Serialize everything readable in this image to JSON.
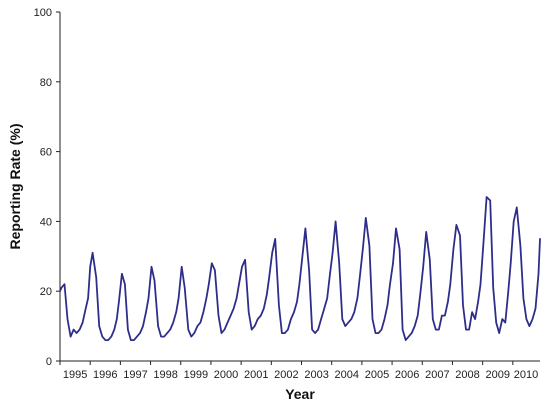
{
  "chart_data": {
    "type": "line",
    "title": "",
    "xlabel": "Year",
    "ylabel": "Reporting Rate (%)",
    "ylim": [
      0,
      100
    ],
    "xlim": [
      1995,
      2010.9
    ],
    "yticks": [
      0,
      20,
      40,
      60,
      80,
      100
    ],
    "xtick_labels": [
      "1995",
      "1996",
      "1997",
      "1998",
      "1999",
      "2000",
      "2001",
      "2002",
      "2003",
      "2004",
      "2005",
      "2006",
      "2007",
      "2008",
      "2009",
      "2010"
    ],
    "grid": false,
    "legend": "none",
    "colors": {
      "line": "#2e2e8a"
    },
    "series": [
      {
        "values_x": [
          1995.0,
          1995.05,
          1995.15,
          1995.25,
          1995.35,
          1995.45,
          1995.55,
          1995.65,
          1995.75,
          1995.85,
          1995.93,
          1996.0,
          1996.08,
          1996.2,
          1996.3,
          1996.4,
          1996.5,
          1996.6,
          1996.7,
          1996.8,
          1996.88,
          1996.95,
          1997.05,
          1997.15,
          1997.25,
          1997.35,
          1997.45,
          1997.55,
          1997.65,
          1997.75,
          1997.85,
          1997.93,
          1998.03,
          1998.13,
          1998.25,
          1998.35,
          1998.45,
          1998.55,
          1998.65,
          1998.75,
          1998.85,
          1998.93,
          1999.03,
          1999.13,
          1999.25,
          1999.35,
          1999.45,
          1999.55,
          1999.65,
          1999.75,
          1999.85,
          1999.93,
          2000.03,
          2000.13,
          2000.25,
          2000.35,
          2000.45,
          2000.55,
          2000.65,
          2000.75,
          2000.85,
          2000.93,
          2001.03,
          2001.13,
          2001.25,
          2001.35,
          2001.45,
          2001.55,
          2001.65,
          2001.75,
          2001.85,
          2001.93,
          2002.03,
          2002.13,
          2002.25,
          2002.35,
          2002.45,
          2002.55,
          2002.65,
          2002.75,
          2002.85,
          2002.93,
          2003.03,
          2003.13,
          2003.25,
          2003.35,
          2003.45,
          2003.55,
          2003.65,
          2003.75,
          2003.85,
          2003.93,
          2004.03,
          2004.13,
          2004.25,
          2004.35,
          2004.45,
          2004.55,
          2004.65,
          2004.75,
          2004.85,
          2004.93,
          2005.03,
          2005.13,
          2005.25,
          2005.35,
          2005.45,
          2005.55,
          2005.65,
          2005.75,
          2005.85,
          2005.93,
          2006.03,
          2006.13,
          2006.25,
          2006.35,
          2006.45,
          2006.55,
          2006.65,
          2006.75,
          2006.85,
          2006.93,
          2007.03,
          2007.13,
          2007.25,
          2007.35,
          2007.45,
          2007.55,
          2007.65,
          2007.75,
          2007.85,
          2007.93,
          2008.03,
          2008.13,
          2008.25,
          2008.35,
          2008.45,
          2008.55,
          2008.65,
          2008.75,
          2008.85,
          2008.93,
          2009.03,
          2009.13,
          2009.25,
          2009.35,
          2009.45,
          2009.55,
          2009.65,
          2009.75,
          2009.85,
          2009.93,
          2010.03,
          2010.13,
          2010.25,
          2010.35,
          2010.45,
          2010.55,
          2010.65,
          2010.75,
          2010.85,
          2010.9
        ],
        "values_y": [
          20,
          21,
          22,
          12,
          7,
          9,
          8,
          9,
          11,
          15,
          18,
          27,
          31,
          24,
          10,
          7,
          6,
          6,
          7,
          9,
          12,
          17,
          25,
          22,
          9,
          6,
          6,
          7,
          8,
          10,
          14,
          18,
          27,
          23,
          10,
          7,
          7,
          8,
          9,
          11,
          14,
          18,
          27,
          21,
          9,
          7,
          8,
          10,
          11,
          14,
          18,
          22,
          28,
          26,
          13,
          8,
          9,
          11,
          13,
          15,
          18,
          22,
          27,
          29,
          14,
          9,
          10,
          12,
          13,
          15,
          19,
          24,
          31,
          35,
          16,
          8,
          8,
          9,
          12,
          14,
          17,
          22,
          30,
          38,
          26,
          9,
          8,
          9,
          12,
          15,
          18,
          24,
          31,
          40,
          28,
          12,
          10,
          11,
          12,
          14,
          18,
          24,
          32,
          41,
          33,
          12,
          8,
          8,
          9,
          12,
          16,
          22,
          28,
          38,
          32,
          9,
          6,
          7,
          8,
          10,
          13,
          19,
          27,
          37,
          29,
          12,
          9,
          9,
          13,
          13,
          17,
          22,
          32,
          39,
          36,
          16,
          9,
          9,
          14,
          12,
          17,
          22,
          34,
          47,
          46,
          21,
          11,
          8,
          12,
          11,
          20,
          28,
          40,
          44,
          33,
          18,
          12,
          10,
          12,
          15,
          25,
          35
        ]
      }
    ]
  }
}
